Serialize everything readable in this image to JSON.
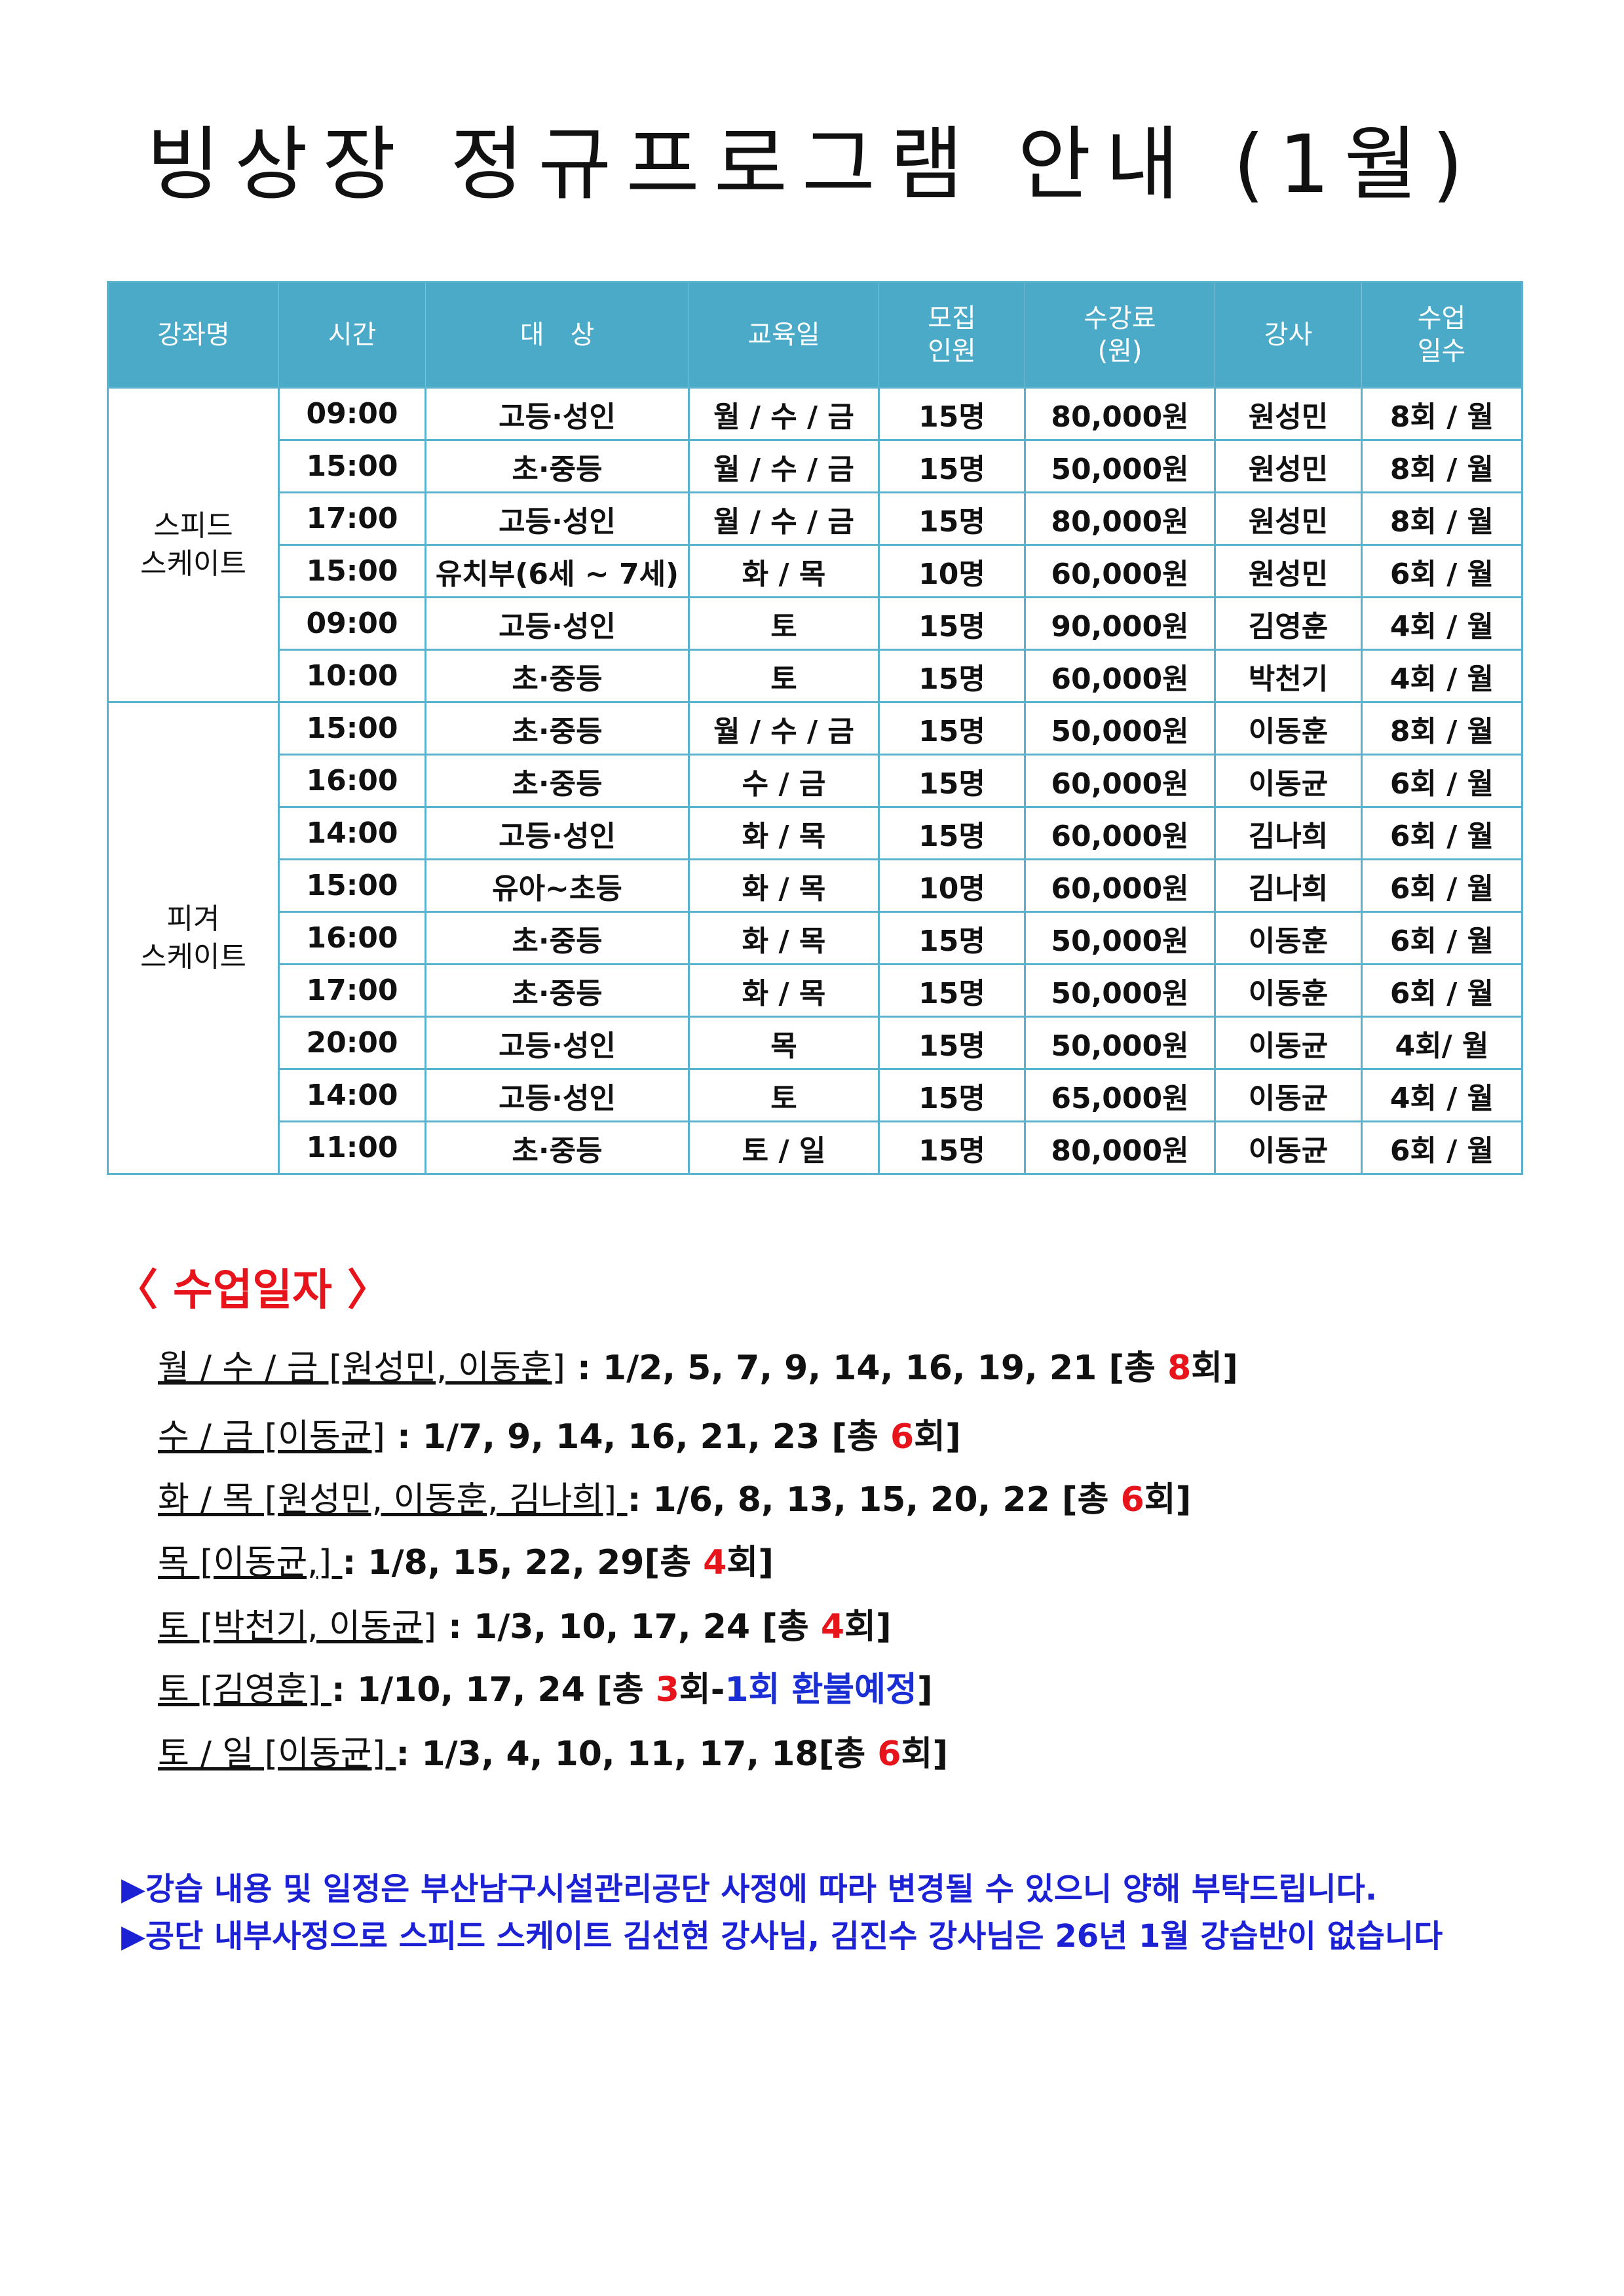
{
  "title": "빙상장 정규프로그램 안내 (1월)",
  "table": {
    "headers": [
      [
        "강좌명"
      ],
      [
        "시간"
      ],
      [
        "대　상"
      ],
      [
        "교육일"
      ],
      [
        "모집",
        "인원"
      ],
      [
        "수강료",
        "(원)"
      ],
      [
        "강사"
      ],
      [
        "수업",
        "일수"
      ]
    ],
    "sections": [
      {
        "name": [
          "스피드",
          "스케이트"
        ],
        "rows": [
          [
            "09:00",
            "고등·성인",
            "월 / 수 / 금",
            "15명",
            "80,000원",
            "원성민",
            "8회 / 월"
          ],
          [
            "15:00",
            "초·중등",
            "월 / 수 / 금",
            "15명",
            "50,000원",
            "원성민",
            "8회 / 월"
          ],
          [
            "17:00",
            "고등·성인",
            "월 / 수 / 금",
            "15명",
            "80,000원",
            "원성민",
            "8회 / 월"
          ],
          [
            "15:00",
            "유치부(6세 ~ 7세)",
            "화 / 목",
            "10명",
            "60,000원",
            "원성민",
            "6회 / 월"
          ],
          [
            "09:00",
            "고등·성인",
            "토",
            "15명",
            "90,000원",
            "김영훈",
            "4회 / 월"
          ],
          [
            "10:00",
            "초·중등",
            "토",
            "15명",
            "60,000원",
            "박천기",
            "4회 / 월"
          ]
        ]
      },
      {
        "name": [
          "피겨",
          "스케이트"
        ],
        "rows": [
          [
            "15:00",
            "초·중등",
            "월 / 수 / 금",
            "15명",
            "50,000원",
            "이동훈",
            "8회 / 월"
          ],
          [
            "16:00",
            "초·중등",
            "수 / 금",
            "15명",
            "60,000원",
            "이동균",
            "6회 / 월"
          ],
          [
            "14:00",
            "고등·성인",
            "화 / 목",
            "15명",
            "60,000원",
            "김나희",
            "6회 / 월"
          ],
          [
            "15:00",
            "유아~초등",
            "화 / 목",
            "10명",
            "60,000원",
            "김나희",
            "6회 / 월"
          ],
          [
            "16:00",
            "초·중등",
            "화 / 목",
            "15명",
            "50,000원",
            "이동훈",
            "6회 / 월"
          ],
          [
            "17:00",
            "초·중등",
            "화 / 목",
            "15명",
            "50,000원",
            "이동훈",
            "6회 / 월"
          ],
          [
            "20:00",
            "고등·성인",
            "목",
            "15명",
            "50,000원",
            "이동균",
            "4회/ 월"
          ],
          [
            "14:00",
            "고등·성인",
            "토",
            "15명",
            "65,000원",
            "이동균",
            "4회 / 월"
          ],
          [
            "11:00",
            "초·중등",
            "토 / 일",
            "15명",
            "80,000원",
            "이동균",
            "6회 / 월"
          ]
        ]
      }
    ]
  },
  "schedule": {
    "heading": "〈 수업일자 〉",
    "lines": [
      {
        "label": "월 / 수 / 금 [원성민, 이동훈]",
        "dates": " : 1/2, 5, 7, 9, 14, 16, 19, 21 [총 ",
        "count": "8",
        "suffix": "회]"
      },
      {
        "label": "수 / 금 [이동균]",
        "dates": " : 1/7, 9, 14, 16, 21, 23 [총 ",
        "count": "6",
        "suffix": "회]"
      },
      {
        "label": "화 / 목 [원성민, 이동훈, 김나희] ",
        "dates": " : 1/6, 8, 13, 15, 20, 22 [총 ",
        "count": "6",
        "suffix": "회]"
      },
      {
        "label": "목 [이동균,] ",
        "dates": " : 1/8, 15, 22, 29[총 ",
        "count": "4",
        "suffix": "회]"
      },
      {
        "label": "토 [박천기, 이동균]",
        "dates": " : 1/3, 10, 17, 24 [총 ",
        "count": "4",
        "suffix": "회]"
      },
      {
        "label": "토 [김영훈] ",
        "dates": " : 1/10, 17, 24 [총 ",
        "count": "3",
        "suffix": "회-",
        "refund": "1회 환불예정",
        "close": "]"
      },
      {
        "label": "토 / 일 [이동균] ",
        "dates": " : 1/3, 4, 10, 11, 17, 18[총 ",
        "count": "6",
        "suffix": "회]"
      }
    ]
  },
  "notes": [
    "▶강습 내용 및 일정은 부산남구시설관리공단 사정에 따라 변경될 수 있으니 양해 부탁드립니다.",
    "▶공단 내부사정으로 스피드 스케이트 김선현 강사님, 김진수 강사님은 26년 1월 강습반이 없습니다"
  ]
}
